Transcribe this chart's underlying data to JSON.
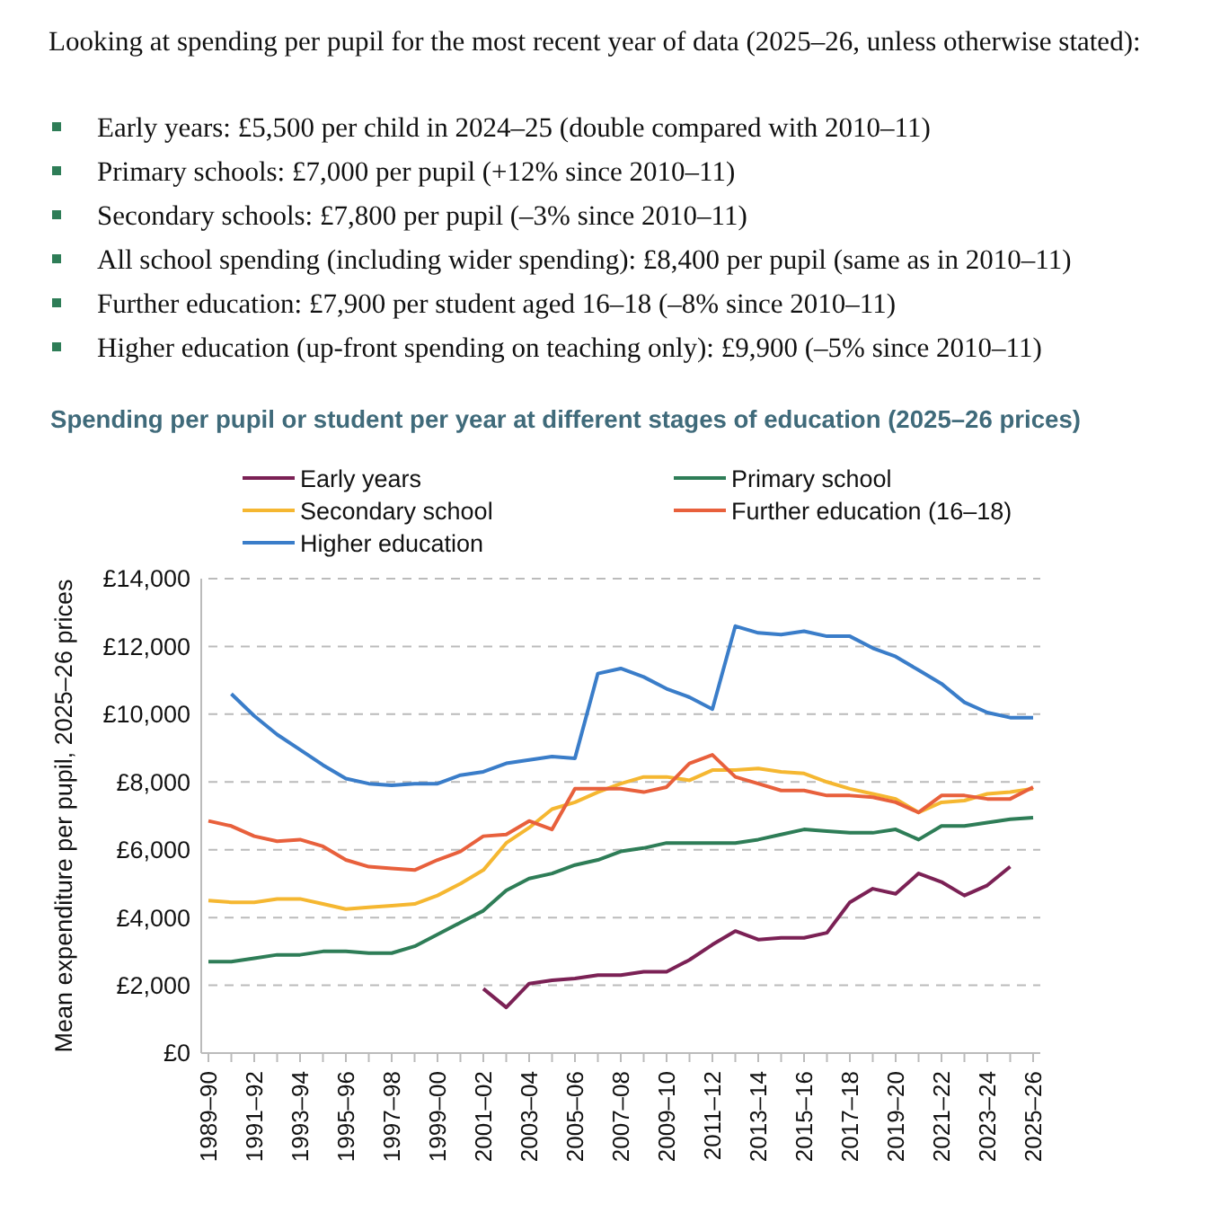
{
  "chart_data": {
    "type": "line",
    "title": "Spending per pupil or student per year at different stages of education (2025–26 prices)",
    "annotations": [
      "Looking at spending per pupil for the most recent year of data (2025–26, unless otherwise stated):",
      "Early years: £5,500 per child in 2024–25 (double compared with 2010–11)",
      "Primary schools: £7,000 per pupil (+12% since 2010–11)",
      "Secondary schools: £7,800 per pupil (–3% since 2010–11)",
      "All school spending (including wider spending): £8,400 per pupil (same as in 2010–11)",
      "Further education: £7,900 per student aged 16–18 (–8% since 2010–11)",
      "Higher education (up-front spending on teaching only): £9,900 (–5% since 2010–11)"
    ],
    "ylabel": "Mean expenditure per pupil, 2025–26 prices",
    "categories": [
      "1989–90",
      null,
      "1991–92",
      null,
      "1993–94",
      null,
      "1995–96",
      null,
      "1997–98",
      null,
      "1999–00",
      null,
      "2001–02",
      null,
      "2003–04",
      null,
      "2005–06",
      null,
      "2007–08",
      null,
      "2009–10",
      null,
      "2011–12",
      null,
      "2013–14",
      null,
      "2015–16",
      null,
      "2017–18",
      null,
      "2019–20",
      null,
      "2021–22",
      null,
      "2023–24",
      null,
      "2025–26"
    ],
    "series": [
      {
        "name": "Early years",
        "color": "#7b2155",
        "values": [
          null,
          null,
          null,
          null,
          null,
          null,
          null,
          null,
          null,
          null,
          null,
          null,
          1900,
          1350,
          2050,
          2150,
          2200,
          2300,
          2300,
          2400,
          2400,
          2750,
          3200,
          3600,
          3350,
          3400,
          3400,
          3550,
          4450,
          4850,
          4700,
          5300,
          5050,
          4650,
          4950,
          5500,
          null
        ]
      },
      {
        "name": "Primary school",
        "color": "#2e7d57",
        "values": [
          2700,
          2700,
          2800,
          2900,
          2900,
          3000,
          3000,
          2950,
          2950,
          3150,
          3500,
          3850,
          4200,
          4800,
          5150,
          5300,
          5550,
          5700,
          5950,
          6050,
          6200,
          6200,
          6200,
          6200,
          6300,
          6450,
          6600,
          6550,
          6500,
          6500,
          6600,
          6300,
          6700,
          6700,
          6800,
          6900,
          6950
        ]
      },
      {
        "name": "Secondary school",
        "color": "#f5b731",
        "values": [
          4500,
          4450,
          4450,
          4550,
          4550,
          4400,
          4250,
          4300,
          4350,
          4400,
          4650,
          5000,
          5400,
          6200,
          6650,
          7200,
          7400,
          7700,
          7950,
          8150,
          8150,
          8050,
          8350,
          8350,
          8400,
          8300,
          8250,
          8000,
          7800,
          7650,
          7500,
          7100,
          7400,
          7450,
          7650,
          7700,
          7800
        ]
      },
      {
        "name": "Further education (16–18)",
        "color": "#e8603c",
        "values": [
          6850,
          6700,
          6400,
          6250,
          6300,
          6100,
          5700,
          5500,
          5450,
          5400,
          5700,
          5950,
          6400,
          6450,
          6850,
          6600,
          7800,
          7800,
          7800,
          7700,
          7850,
          8550,
          8800,
          8150,
          7950,
          7750,
          7750,
          7600,
          7600,
          7550,
          7400,
          7100,
          7600,
          7600,
          7500,
          7500,
          7850
        ]
      },
      {
        "name": "Higher education",
        "color": "#3a7dc9",
        "values": [
          null,
          10600,
          9950,
          9400,
          8950,
          8500,
          8100,
          7950,
          7900,
          7950,
          7950,
          8200,
          8300,
          8550,
          8650,
          8750,
          8700,
          11200,
          11350,
          11100,
          10750,
          10500,
          10150,
          12600,
          12400,
          12350,
          12450,
          12300,
          12300,
          11950,
          11700,
          11300,
          10900,
          10350,
          10050,
          9900,
          9900
        ]
      }
    ],
    "ylim": [
      0,
      14000
    ],
    "yticks": [
      {
        "value": 0,
        "label": "£0"
      },
      {
        "value": 2000,
        "label": "£2,000"
      },
      {
        "value": 4000,
        "label": "£4,000"
      },
      {
        "value": 6000,
        "label": "£6,000"
      },
      {
        "value": 8000,
        "label": "£8,000"
      },
      {
        "value": 10000,
        "label": "£10,000"
      },
      {
        "value": 12000,
        "label": "£12,000"
      },
      {
        "value": 14000,
        "label": "£14,000"
      }
    ],
    "grid": "y",
    "legend": "top",
    "marker": "none",
    "line_style": "solid"
  }
}
